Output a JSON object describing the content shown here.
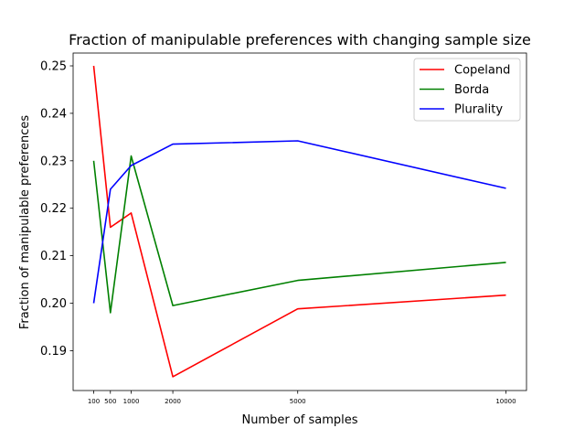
{
  "chart_data": {
    "type": "line",
    "title": "Fraction of manipulable preferences with changing sample size",
    "xlabel": "Number of samples",
    "ylabel": "Fraction of manipulable preferences",
    "x": [
      100,
      500,
      1000,
      2000,
      5000,
      10000
    ],
    "xticks": [
      "100",
      "500",
      "1000",
      "2000",
      "5000",
      "10000"
    ],
    "yticks": [
      "0.19",
      "0.20",
      "0.21",
      "0.22",
      "0.23",
      "0.24",
      "0.25"
    ],
    "ytick_values": [
      0.19,
      0.2,
      0.21,
      0.22,
      0.23,
      0.24,
      0.25
    ],
    "xlim": [
      -395,
      10495
    ],
    "ylim": [
      0.1816,
      0.2527
    ],
    "grid": false,
    "legend_position": "top-right",
    "series": [
      {
        "name": "Copeland",
        "color": "#ff0000",
        "values": [
          0.25,
          0.216,
          0.219,
          0.1845,
          0.1988,
          0.2017
        ]
      },
      {
        "name": "Borda",
        "color": "#008000",
        "values": [
          0.23,
          0.198,
          0.231,
          0.1995,
          0.2048,
          0.2086
        ]
      },
      {
        "name": "Plurality",
        "color": "#0000ff",
        "values": [
          0.2,
          0.224,
          0.229,
          0.2335,
          0.2342,
          0.2242
        ]
      }
    ]
  }
}
